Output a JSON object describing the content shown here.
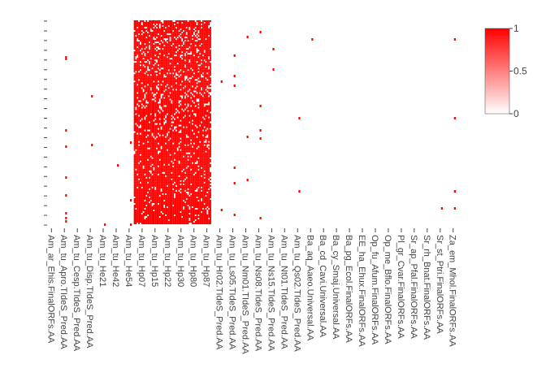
{
  "chart_data": {
    "type": "heatmap",
    "title": "",
    "xlabel": "",
    "ylabel": "",
    "color_scale": {
      "low": "#ffffff",
      "high": "#ff0000",
      "range": [
        0,
        1
      ]
    },
    "colorbar": {
      "ticks": [
        0,
        0.5,
        1
      ],
      "tick_labels": [
        "0",
        "0.5",
        "1"
      ],
      "position": "right"
    },
    "x_tick_labels": [
      "Am_ar_Ehis.FinalORFs.AA",
      "Am_tu_Apro.TIdeS_Pred.AA",
      "Am_tu_Cesp.TIdeS_Pred.AA",
      "Am_tu_Disp.TIdeS_Pred.AA",
      "Am_tu_He21",
      "Am_tu_He42",
      "Am_tu_He54",
      "Am_tu_Hp07",
      "Am_tu_Hp15",
      "Am_tu_Hp22",
      "Am_tu_Hp30",
      "Am_tu_Hp80",
      "Am_tu_Hp87",
      "Am_tu_Hr02.TIdeS_Pred.AA",
      "Am_tu_Ls05.TIdeS_Pred.AA",
      "Am_tu_Nm01.TIdeS_Pred.AA",
      "Am_tu_Ns08.TIdeS_Pred.AA",
      "Am_tu_Ns15.TIdeS_Pred.AA",
      "Am_tu_Nt01.TIdeS_Pred.AA",
      "Am_tu_Qs02.TIdeS_Pred.AA",
      "Ba_aq_Aaeo.Universal.AA",
      "Ba_cd_Cavi.Universal.AA",
      "Ba_cy_Smaj.Universal.AA",
      "Ba_pg_Ecol.FinalORFs.AA",
      "EE_ha_Ehux.FinalORFs.AA",
      "Op_fu_Afum.FinalORFs.AA",
      "Op_me_Bflo.FinalORFs.AA",
      "Pl_gr_Cvar.FinalORFs.AA",
      "Sr_ap_Pfal.FinalORFs.AA",
      "Sr_rh_Bnat.FinalORFs.AA",
      "Sr_st_Ptri.FinalORFs.AA",
      "Za_em_Mhol.FinalORFs.AA"
    ],
    "n_columns": 32,
    "n_rows": 125,
    "dense_block_x_labels": [
      "Am_tu_Hp07",
      "Am_tu_Hp15",
      "Am_tu_Hp22",
      "Am_tu_Hp30",
      "Am_tu_Hp80",
      "Am_tu_Hp87"
    ],
    "dense_block_fill_fraction": 0.82,
    "grid": false,
    "y_tick_labels_visible": false
  }
}
